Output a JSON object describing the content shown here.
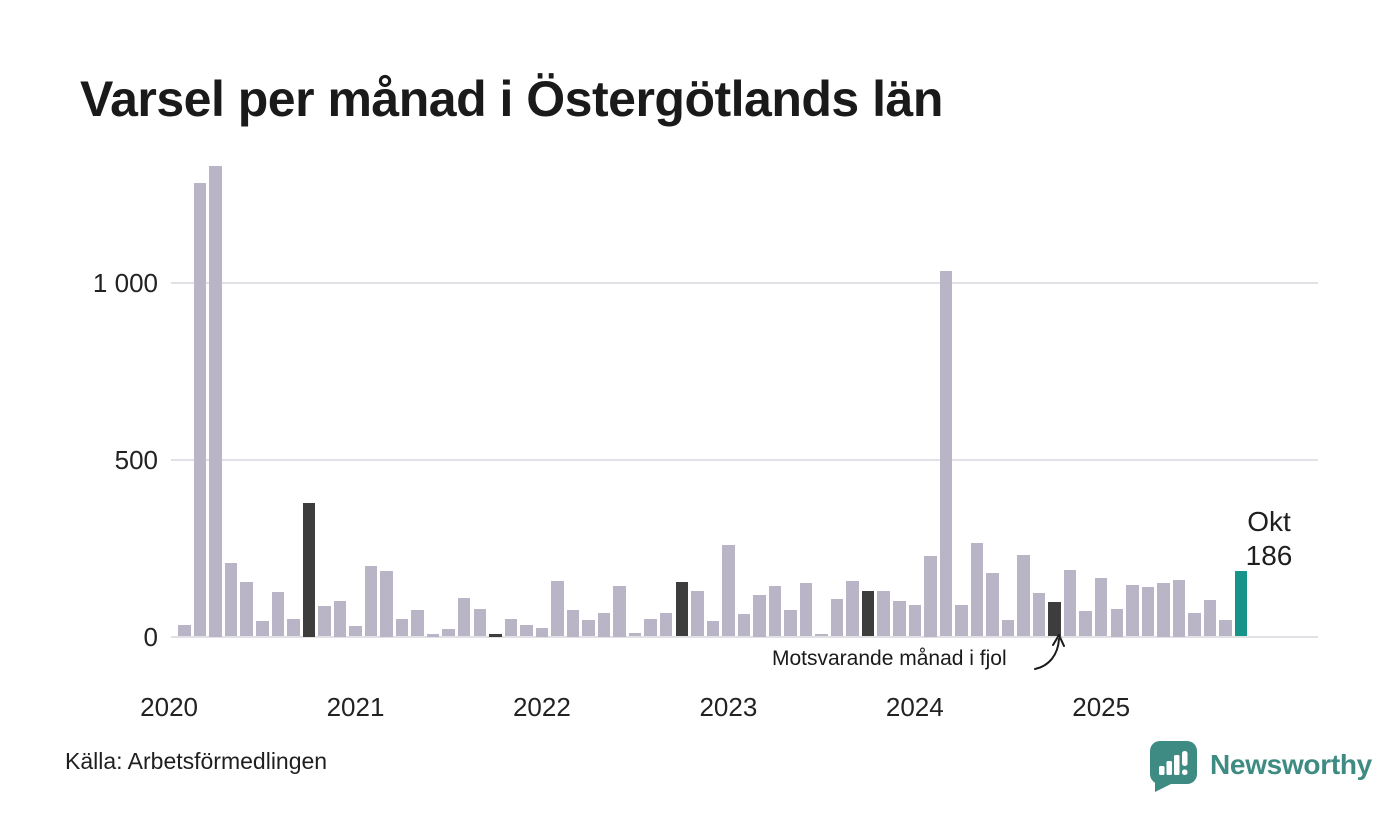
{
  "title": "Varsel per månad i Östergötlands län",
  "source": "Källa: Arbetsförmedlingen",
  "logo": {
    "text": "Newsworthy",
    "icon": "newsworthy-bubble-barchart-icon"
  },
  "annotation": {
    "text": "Motsvarande månad i fjol"
  },
  "current_label": {
    "month": "Okt",
    "value": "186"
  },
  "y_axis": {
    "tick_values": [
      0,
      500,
      1000
    ],
    "tick_labels": [
      "0",
      "500",
      "1 000"
    ]
  },
  "x_axis": {
    "ticks": [
      {
        "label": "2020",
        "month_index": -1
      },
      {
        "label": "2021",
        "month_index": 11
      },
      {
        "label": "2022",
        "month_index": 23
      },
      {
        "label": "2023",
        "month_index": 35
      },
      {
        "label": "2024",
        "month_index": 47
      },
      {
        "label": "2025",
        "month_index": 59
      }
    ]
  },
  "colors": {
    "bar": "#b9b5c7",
    "bar_last_year": "#3d3d3d",
    "bar_current": "#17948a",
    "grid": "#e2e1e6",
    "text": "#1f1f1f",
    "logo_teal": "#3d8b82"
  },
  "chart_data": {
    "type": "bar",
    "title": "Varsel per månad i Östergötlands län",
    "xlabel": "",
    "ylabel": "",
    "ylim": [
      0,
      1360
    ],
    "grid": true,
    "legend_position": "none",
    "frequency": "monthly",
    "x": [
      "2020-02",
      "2020-03",
      "2020-04",
      "2020-05",
      "2020-06",
      "2020-07",
      "2020-08",
      "2020-09",
      "2020-10",
      "2020-11",
      "2020-12",
      "2021-01",
      "2021-02",
      "2021-03",
      "2021-04",
      "2021-05",
      "2021-06",
      "2021-07",
      "2021-08",
      "2021-09",
      "2021-10",
      "2021-11",
      "2021-12",
      "2022-01",
      "2022-02",
      "2022-03",
      "2022-04",
      "2022-05",
      "2022-06",
      "2022-07",
      "2022-08",
      "2022-09",
      "2022-10",
      "2022-11",
      "2022-12",
      "2023-01",
      "2023-02",
      "2023-03",
      "2023-04",
      "2023-05",
      "2023-06",
      "2023-07",
      "2023-08",
      "2023-09",
      "2023-10",
      "2023-11",
      "2023-12",
      "2024-01",
      "2024-02",
      "2024-03",
      "2024-04",
      "2024-05",
      "2024-06",
      "2024-07",
      "2024-08",
      "2024-09",
      "2024-10",
      "2024-11",
      "2024-12",
      "2025-01",
      "2025-02",
      "2025-03",
      "2025-04",
      "2025-05",
      "2025-06",
      "2025-07",
      "2025-08",
      "2025-09",
      "2025-10"
    ],
    "values": [
      32,
      1283,
      1332,
      207,
      154,
      43,
      125,
      50,
      378,
      86,
      102,
      31,
      200,
      187,
      50,
      74,
      7,
      21,
      108,
      77,
      7,
      49,
      32,
      24,
      156,
      75,
      47,
      68,
      143,
      9,
      49,
      67,
      154,
      128,
      43,
      258,
      64,
      119,
      144,
      74,
      152,
      6,
      107,
      158,
      130,
      128,
      100,
      90,
      228,
      1035,
      90,
      264,
      179,
      47,
      231,
      123,
      98,
      189,
      73,
      165,
      78,
      146,
      140,
      153,
      160,
      67,
      103,
      46,
      186
    ],
    "last_year_month_indices": [
      8,
      20,
      32,
      44,
      56
    ],
    "current_index": 68,
    "annotation_target_index": 56,
    "annotations": [
      "Motsvarande månad i fjol",
      "Okt 186"
    ]
  }
}
